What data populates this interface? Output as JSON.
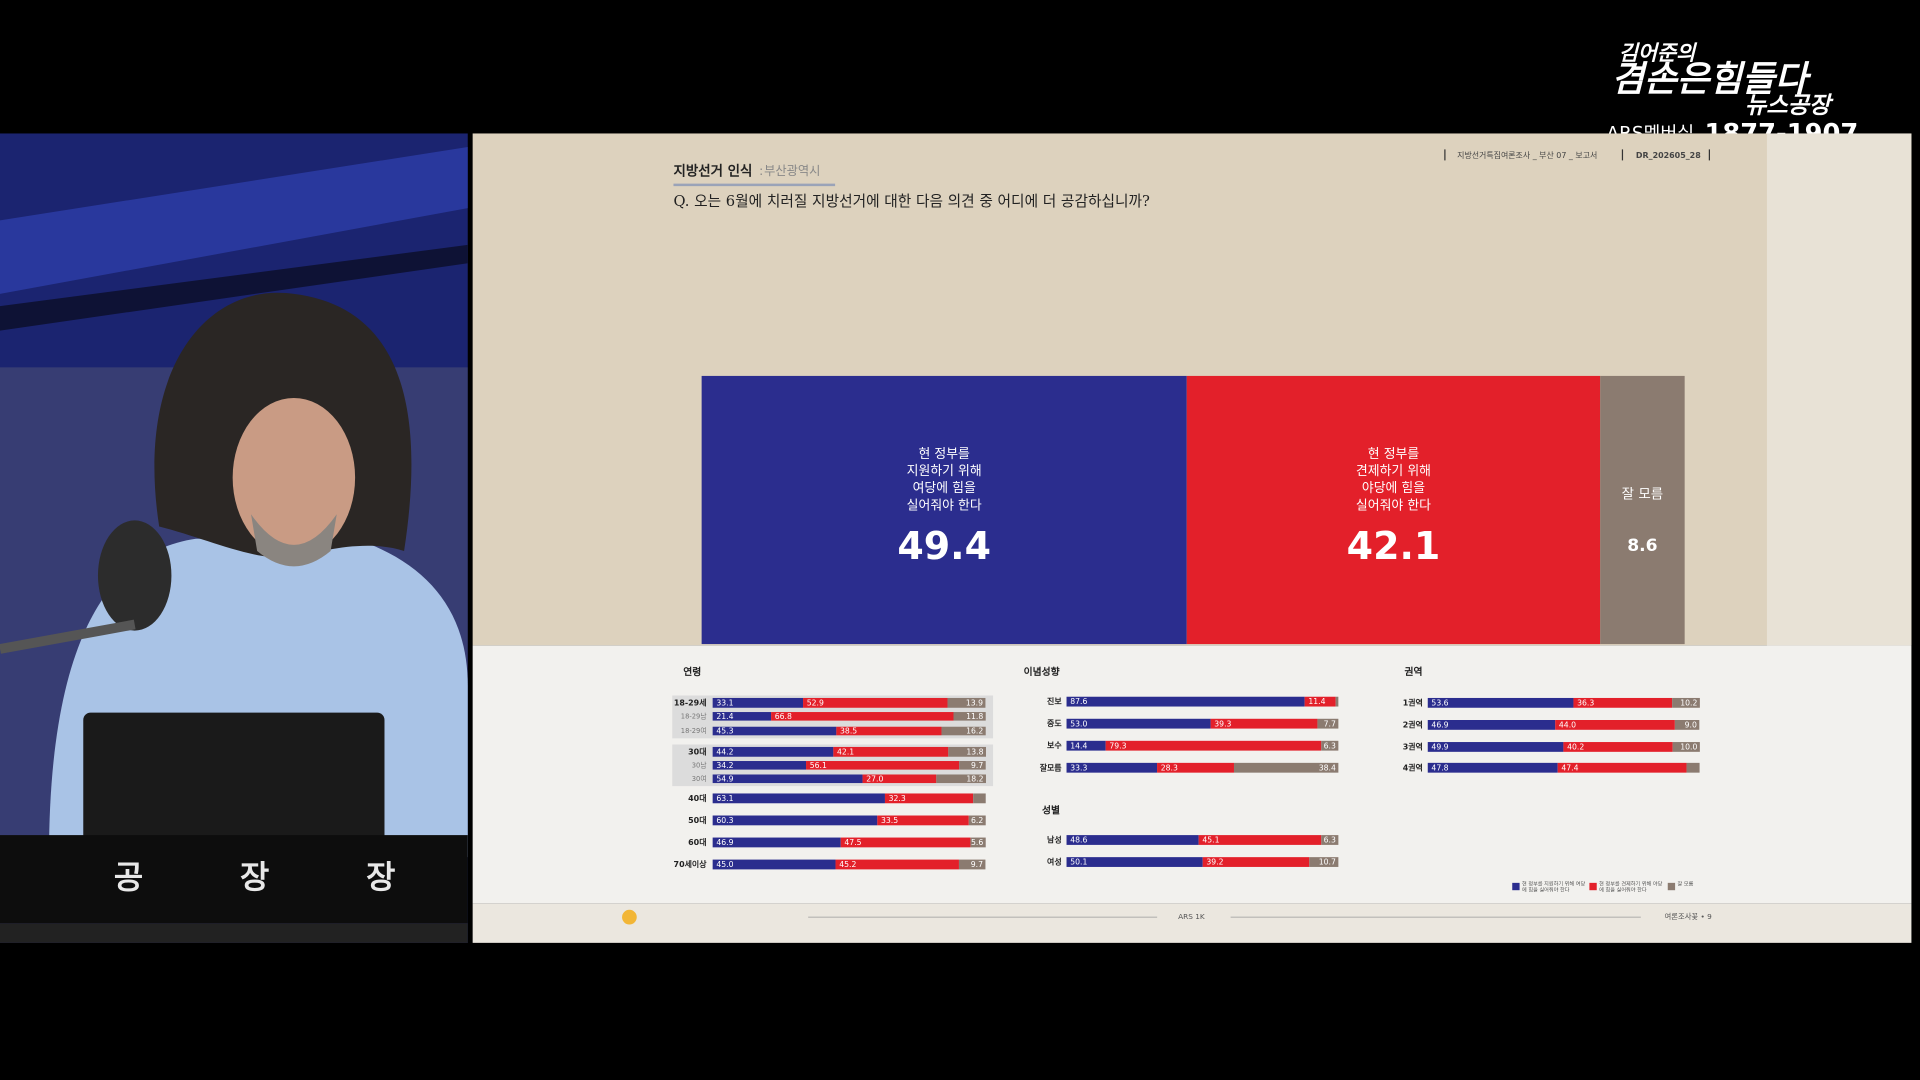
{
  "logo": {
    "line1": "김어준의",
    "line2": "겸손은힘들다",
    "line3": "뉴스공장",
    "ars": "ARS멤버십",
    "number": "1877-1907"
  },
  "studio": {
    "desk_chars": [
      "공",
      "장",
      "장"
    ]
  },
  "slide": {
    "title": "지방선거 인식",
    "subtitle": "부산광역시",
    "meta": "지방선거특집여론조사 _ 부산 07 _ 보고서",
    "code": "DR_202605_28",
    "question": "Q. 오는 6월에 치러질 지방선거에 대한 다음 의견 중 어디에 더 공감하십니까?",
    "footer_center": "ARS 1K",
    "footer_right": "여론조사꽃 • 9"
  },
  "chart_data": [
    {
      "type": "bar",
      "orientation": "horizontal",
      "stacked": true,
      "xlim": [
        0,
        100
      ],
      "series": [
        {
          "name": "현 정부를\n지원하기 위해\n여당에 힘을\n실어줘야 한다",
          "color": "#2b2d8e",
          "values": [
            49.4
          ]
        },
        {
          "name": "현 정부를\n견제하기 위해\n야당에 힘을\n실어줘야 한다",
          "color": "#e3202a",
          "values": [
            42.1
          ]
        },
        {
          "name": "잘 모름",
          "color": "#8b7b70",
          "values": [
            8.6
          ]
        }
      ]
    },
    {
      "type": "bar",
      "orientation": "horizontal",
      "stacked": true,
      "title": "연령",
      "xlim": [
        0,
        100
      ],
      "categories": [
        "18-29세",
        "18-29남",
        "18-29여",
        "30대",
        "30남",
        "30여",
        "40대",
        "50대",
        "60대",
        "70세이상"
      ],
      "series": [
        {
          "color": "#2b2d8e",
          "values": [
            33.1,
            21.4,
            45.3,
            44.2,
            34.2,
            54.9,
            63.1,
            60.3,
            46.9,
            45.0
          ],
          "value_labels": [
            "33.1",
            "21.4",
            "45.3",
            "44.2",
            "34.2",
            "54.9",
            "63.1",
            "60.3",
            "46.9",
            "45.0"
          ]
        },
        {
          "color": "#e3202a",
          "values": [
            52.9,
            66.8,
            38.5,
            42.1,
            56.1,
            27.0,
            32.3,
            33.5,
            47.5,
            45.2
          ],
          "value_labels": [
            "52.9",
            "66.8",
            "38.5",
            "42.1",
            "56.1",
            "27.0",
            "32.3",
            "33.5",
            "47.5",
            "45.2"
          ]
        },
        {
          "color": "#8b7b70",
          "values": [
            13.9,
            11.8,
            16.2,
            13.8,
            9.7,
            18.2,
            4.6,
            6.2,
            5.6,
            9.7
          ],
          "value_labels": [
            "13.9",
            "11.8",
            "16.2",
            "13.8",
            "9.7",
            "18.2",
            null,
            "6.2",
            "5.6",
            "9.7"
          ]
        }
      ]
    },
    {
      "type": "bar",
      "orientation": "horizontal",
      "stacked": true,
      "title": "이념성향",
      "xlim": [
        0,
        100
      ],
      "categories": [
        "진보",
        "중도",
        "보수",
        "잘모름"
      ],
      "series": [
        {
          "color": "#2b2d8e",
          "values": [
            87.6,
            53.0,
            14.4,
            33.3
          ],
          "value_labels": [
            "87.6",
            "53.0",
            "14.4",
            "33.3"
          ]
        },
        {
          "color": "#e3202a",
          "values": [
            11.4,
            39.3,
            79.3,
            28.3
          ]
        },
        {
          "color": "#8b7b70",
          "values": [
            1.0,
            7.7,
            6.3,
            38.4
          ],
          "value_labels": [
            null,
            "7.7",
            "6.3",
            "38.4"
          ]
        }
      ]
    },
    {
      "type": "bar",
      "orientation": "horizontal",
      "stacked": true,
      "title": "성별",
      "xlim": [
        0,
        100
      ],
      "categories": [
        "남성",
        "여성"
      ],
      "series": [
        {
          "color": "#2b2d8e",
          "values": [
            48.6,
            50.1
          ]
        },
        {
          "color": "#e3202a",
          "values": [
            45.1,
            39.2
          ]
        },
        {
          "color": "#8b7b70",
          "values": [
            6.3,
            10.7
          ]
        }
      ]
    },
    {
      "type": "bar",
      "orientation": "horizontal",
      "stacked": true,
      "title": "권역",
      "xlim": [
        0,
        100
      ],
      "categories": [
        "1권역",
        "2권역",
        "3권역",
        "4권역"
      ],
      "series": [
        {
          "color": "#2b2d8e",
          "values": [
            53.6,
            46.9,
            49.9,
            47.8
          ]
        },
        {
          "color": "#e3202a",
          "values": [
            36.3,
            44.0,
            40.2,
            47.4
          ],
          "value_labels": [
            "36.3",
            "44.0",
            "40.2",
            "47.4"
          ]
        },
        {
          "color": "#8b7b70",
          "values": [
            10.2,
            9.0,
            10.0,
            4.8
          ],
          "value_labels": [
            "10.2",
            "9.0",
            "10.0",
            null
          ]
        }
      ]
    }
  ]
}
